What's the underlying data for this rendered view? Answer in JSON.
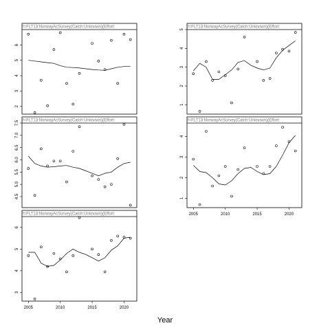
{
  "chart_data": {
    "type": "scatter",
    "xlabel": "Year",
    "panels": [
      {
        "strip": "f=FLT13:NorwayAcSurvey(Catch:Unknown)(Effort:",
        "ylim": [
          1.5,
          7.0
        ],
        "y_ticks": [
          2,
          3,
          4,
          5,
          6
        ],
        "x_ticks": [],
        "points": {
          "x": [
            2005,
            2006,
            2007,
            2008,
            2009,
            2010,
            2011,
            2012,
            2013,
            2015,
            2016,
            2017,
            2018,
            2019,
            2020,
            2021
          ],
          "y": [
            6.7,
            1.6,
            3.7,
            2.05,
            5.7,
            6.8,
            3.5,
            2.15,
            4.15,
            6.1,
            4.95,
            4.4,
            6.3,
            3.5,
            6.7,
            6.35
          ]
        },
        "fit": {
          "x": [
            2005,
            2006,
            2007,
            2008,
            2009,
            2010,
            2011,
            2012,
            2013,
            2014,
            2015,
            2016,
            2017,
            2018,
            2019,
            2020,
            2021
          ],
          "y": [
            5.0,
            4.95,
            4.9,
            4.85,
            4.8,
            4.65,
            4.55,
            4.53,
            4.5,
            4.45,
            4.4,
            4.37,
            4.35,
            4.45,
            4.55,
            4.6,
            4.6
          ]
        }
      },
      {
        "strip": "f=FLT13:NorwayAcSurvey(Catch:Unknown)(Effort:",
        "ylim": [
          0.5,
          5.0
        ],
        "y_ticks": [
          1,
          2,
          3,
          4,
          5
        ],
        "x_ticks": [],
        "points": {
          "x": [
            2005,
            2006,
            2007,
            2008,
            2009,
            2010,
            2011,
            2012,
            2013,
            2015,
            2016,
            2017,
            2018,
            2019,
            2020,
            2021
          ],
          "y": [
            2.65,
            0.65,
            3.3,
            2.3,
            2.75,
            2.55,
            1.1,
            2.9,
            4.6,
            3.3,
            2.3,
            2.4,
            3.75,
            3.95,
            3.85,
            4.85
          ]
        },
        "fit": {
          "x": [
            2005,
            2006,
            2007,
            2008,
            2009,
            2010,
            2011,
            2012,
            2013,
            2014,
            2015,
            2016,
            2017,
            2018,
            2019,
            2020,
            2021
          ],
          "y": [
            2.8,
            3.2,
            3.0,
            2.35,
            2.35,
            2.6,
            2.85,
            3.25,
            3.35,
            3.1,
            2.95,
            2.85,
            2.95,
            3.5,
            3.9,
            4.15,
            4.4
          ]
        }
      },
      {
        "strip": "f=FLT13:NorwayAcSurvey(Catch:Unknown)(Effort:",
        "ylim": [
          4.05,
          7.5
        ],
        "y_ticks": [
          4.5,
          5.0,
          5.5,
          6.0,
          6.5,
          7.0,
          7.5
        ],
        "x_ticks": [],
        "points": {
          "x": [
            2005,
            2006,
            2007,
            2008,
            2009,
            2010,
            2011,
            2012,
            2013,
            2015,
            2016,
            2017,
            2018,
            2019,
            2020,
            2021
          ],
          "y": [
            5.65,
            4.55,
            6.45,
            5.75,
            5.95,
            5.95,
            5.1,
            6.35,
            7.35,
            5.35,
            5.2,
            4.9,
            5.0,
            6.05,
            7.45,
            4.15
          ]
        },
        "fit": {
          "x": [
            2005,
            2006,
            2007,
            2008,
            2009,
            2010,
            2011,
            2012,
            2013,
            2014,
            2015,
            2016,
            2017,
            2018,
            2019,
            2020,
            2021
          ],
          "y": [
            6.15,
            5.85,
            5.75,
            5.7,
            5.72,
            5.75,
            5.77,
            5.7,
            5.65,
            5.55,
            5.45,
            5.35,
            5.45,
            5.5,
            5.7,
            5.85,
            5.9
          ]
        }
      },
      {
        "strip": "f=FLT13:NorwayAcSurvey(Catch:Unknown)(Effort:",
        "ylim": [
          0.55,
          4.65
        ],
        "y_ticks": [
          1,
          2,
          3,
          4
        ],
        "x_ticks": [
          2005,
          2010,
          2015,
          2020
        ],
        "points": {
          "x": [
            2005,
            2006,
            2007,
            2008,
            2009,
            2010,
            2011,
            2012,
            2013,
            2015,
            2016,
            2017,
            2018,
            2019,
            2020,
            2021
          ],
          "y": [
            2.9,
            0.7,
            4.25,
            1.6,
            2.1,
            2.55,
            1.1,
            2.4,
            3.45,
            2.55,
            2.2,
            2.55,
            3.55,
            4.45,
            3.75,
            3.3
          ]
        },
        "fit": {
          "x": [
            2005,
            2006,
            2007,
            2008,
            2009,
            2010,
            2011,
            2012,
            2013,
            2014,
            2015,
            2016,
            2017,
            2018,
            2019,
            2020,
            2021
          ],
          "y": [
            2.6,
            2.3,
            2.25,
            2.0,
            1.7,
            1.65,
            1.85,
            2.2,
            2.45,
            2.5,
            2.3,
            2.15,
            2.2,
            2.55,
            3.1,
            3.7,
            4.05
          ]
        }
      },
      {
        "strip": "f=FLT13:NorwayAcSurvey(Catch:Unknown)(Effort:",
        "ylim": [
          2.6,
          6.5
        ],
        "y_ticks": [
          3,
          4,
          5,
          6
        ],
        "x_ticks": [
          2005,
          2010,
          2015,
          2020
        ],
        "points": {
          "x": [
            2005,
            2006,
            2007,
            2008,
            2009,
            2010,
            2011,
            2012,
            2013,
            2015,
            2016,
            2017,
            2018,
            2019,
            2020,
            2021
          ],
          "y": [
            4.7,
            2.7,
            5.1,
            4.2,
            4.8,
            4.55,
            3.95,
            4.7,
            6.45,
            5.0,
            4.75,
            3.95,
            5.4,
            5.6,
            5.55,
            5.5
          ]
        },
        "fit": {
          "x": [
            2005,
            2006,
            2007,
            2008,
            2009,
            2010,
            2011,
            2012,
            2013,
            2014,
            2015,
            2016,
            2017,
            2018,
            2019,
            2020,
            2021
          ],
          "y": [
            4.85,
            4.85,
            4.35,
            4.2,
            4.25,
            4.5,
            4.8,
            5.0,
            4.85,
            4.75,
            4.6,
            4.45,
            4.6,
            4.95,
            5.15,
            5.5,
            5.55
          ]
        }
      }
    ]
  }
}
